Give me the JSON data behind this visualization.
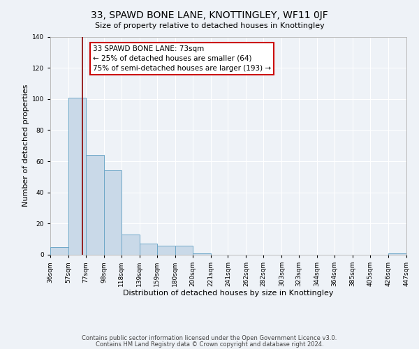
{
  "title": "33, SPAWD BONE LANE, KNOTTINGLEY, WF11 0JF",
  "subtitle": "Size of property relative to detached houses in Knottingley",
  "xlabel": "Distribution of detached houses by size in Knottingley",
  "ylabel": "Number of detached properties",
  "bin_edges": [
    36,
    57,
    77,
    98,
    118,
    139,
    159,
    180,
    200,
    221,
    241,
    262,
    282,
    303,
    323,
    344,
    364,
    385,
    405,
    426,
    447
  ],
  "bar_heights": [
    5,
    101,
    64,
    54,
    13,
    7,
    6,
    6,
    1,
    0,
    0,
    0,
    0,
    0,
    0,
    0,
    0,
    0,
    0,
    1
  ],
  "bar_color": "#c9d9e8",
  "bar_edge_color": "#6fa8c8",
  "property_size": 73,
  "vline_color": "#8b0000",
  "ylim": [
    0,
    140
  ],
  "annotation_line1": "33 SPAWD BONE LANE: 73sqm",
  "annotation_line2": "← 25% of detached houses are smaller (64)",
  "annotation_line3": "75% of semi-detached houses are larger (193) →",
  "footer_line1": "Contains HM Land Registry data © Crown copyright and database right 2024.",
  "footer_line2": "Contains public sector information licensed under the Open Government Licence v3.0.",
  "tick_labels": [
    "36sqm",
    "57sqm",
    "77sqm",
    "98sqm",
    "118sqm",
    "139sqm",
    "159sqm",
    "180sqm",
    "200sqm",
    "221sqm",
    "241sqm",
    "262sqm",
    "282sqm",
    "303sqm",
    "323sqm",
    "344sqm",
    "364sqm",
    "385sqm",
    "405sqm",
    "426sqm",
    "447sqm"
  ],
  "background_color": "#eef2f7",
  "grid_color": "#ffffff",
  "title_fontsize": 10,
  "axis_label_fontsize": 8,
  "tick_fontsize": 6.5,
  "annotation_fontsize": 7.5,
  "footer_fontsize": 6
}
